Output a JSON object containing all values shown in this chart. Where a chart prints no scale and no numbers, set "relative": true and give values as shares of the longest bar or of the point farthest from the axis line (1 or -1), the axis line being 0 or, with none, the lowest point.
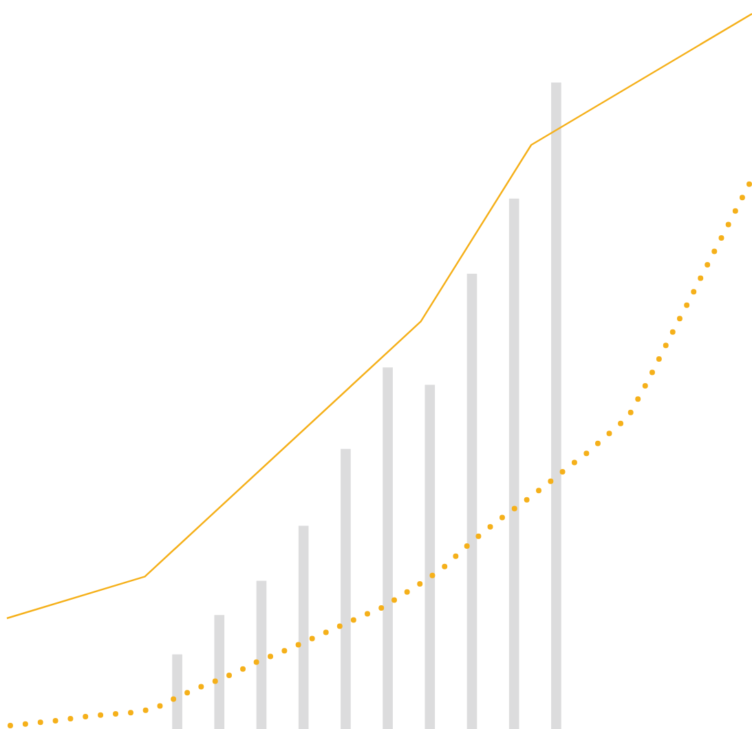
{
  "chart_data": [
    {
      "type": "bar",
      "relative": true,
      "legend": false,
      "categories": [
        null,
        null,
        null,
        null,
        null,
        null,
        null,
        null,
        null,
        null
      ],
      "series": [
        {
          "color": "#dcdcdd",
          "values": [
            0.115,
            0.176,
            0.229,
            0.314,
            0.433,
            0.559,
            0.532,
            0.704,
            0.82,
            1
          ]
        }
      ]
    },
    {
      "type": "line",
      "relative": true,
      "legend": false,
      "marker": "none",
      "line_style": "solid",
      "categories": [
        null,
        null,
        null,
        null,
        null,
        null,
        null,
        null,
        null,
        null,
        null,
        null,
        null,
        null,
        null,
        null,
        null,
        null,
        null,
        null,
        null,
        null,
        null,
        null,
        null,
        null,
        null,
        null
      ],
      "series": [
        {
          "color": "#f5b01a",
          "values": [
            0,
            null,
            null,
            null,
            null,
            0.069,
            null,
            null,
            null,
            null,
            null,
            null,
            null,
            null,
            null,
            0.491,
            null,
            null,
            null,
            0.783,
            null,
            null,
            null,
            null,
            null,
            null,
            null,
            1
          ]
        }
      ]
    },
    {
      "type": "line",
      "relative": true,
      "legend": false,
      "marker": "none",
      "line_style": "dotted",
      "categories": [
        null,
        null,
        null,
        null,
        null,
        null,
        null,
        null,
        null,
        null,
        null,
        null,
        null,
        null,
        null,
        null,
        null,
        null,
        null,
        null,
        null,
        null,
        null,
        null,
        null,
        null,
        null,
        null,
        null,
        null,
        null,
        null,
        null,
        null,
        null,
        null,
        null
      ],
      "series": [
        {
          "color": "#f5b01a",
          "values": [
            0,
            0.004,
            0.008,
            0.013,
            0.018,
            0.021,
            0.024,
            0.031,
            0.05,
            0.067,
            0.082,
            0.098,
            0.117,
            0.132,
            0.148,
            0.165,
            0.182,
            0.199,
            0.215,
            0.238,
            0.262,
            0.288,
            0.323,
            0.355,
            0.384,
            0.411,
            0.44,
            0.47,
            0.499,
            0.532,
            0.565,
            0.634,
            0.709,
            0.781,
            0.855,
            0.927,
            1
          ]
        }
      ]
    }
  ]
}
